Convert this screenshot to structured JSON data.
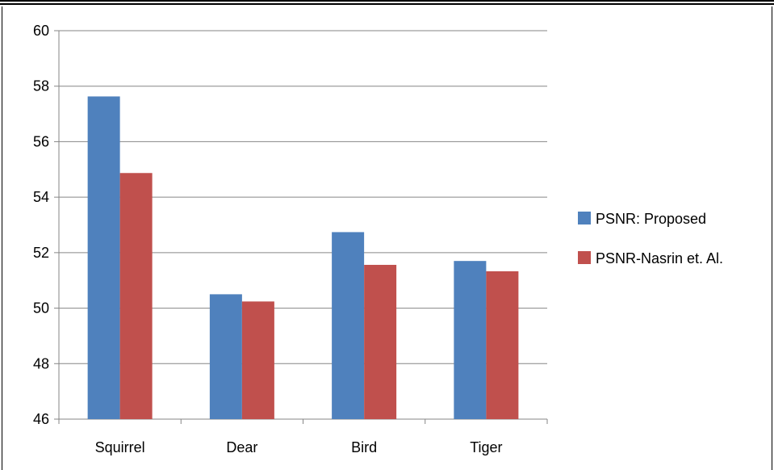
{
  "chart_data": {
    "type": "bar",
    "categories": [
      "Squirrel",
      "Dear",
      "Bird",
      "Tiger"
    ],
    "series": [
      {
        "name": "PSNR: Proposed",
        "color": "#4F81BD",
        "values": [
          57.63,
          50.5,
          52.74,
          51.7
        ]
      },
      {
        "name": "PSNR-Nasrin et. Al.",
        "color": "#C0504D",
        "values": [
          54.87,
          50.24,
          51.56,
          51.33
        ]
      }
    ],
    "yticks": [
      "46",
      "48",
      "50",
      "52",
      "54",
      "56",
      "58",
      "60"
    ],
    "ylim": [
      46,
      60
    ],
    "grid": true,
    "legend_position": "right",
    "title": "",
    "xlabel": "",
    "ylabel": ""
  }
}
